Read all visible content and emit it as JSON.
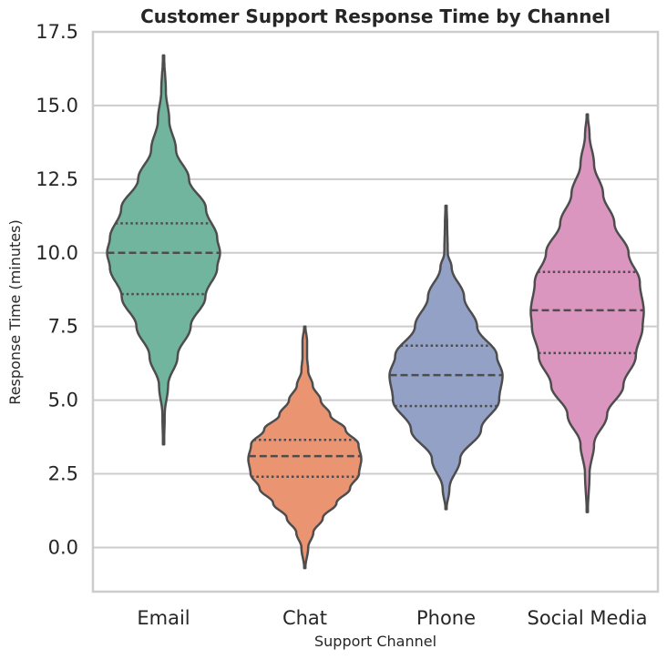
{
  "chart_data": {
    "type": "violin",
    "title": "Customer Support Response Time by Channel",
    "xlabel": "Support Channel",
    "ylabel": "Response Time (minutes)",
    "ylim": [
      -1.5,
      17.5
    ],
    "yticks": [
      0.0,
      2.5,
      5.0,
      7.5,
      10.0,
      12.5,
      15.0,
      17.5
    ],
    "ytick_labels": [
      "0.0",
      "2.5",
      "5.0",
      "7.5",
      "10.0",
      "12.5",
      "15.0",
      "17.5"
    ],
    "grid": "horizontal",
    "categories": [
      "Email",
      "Chat",
      "Phone",
      "Social Media"
    ],
    "series": [
      {
        "category": "Email",
        "color": "#72b59e",
        "min": 3.5,
        "max": 16.7,
        "q1": 8.6,
        "median": 10.0,
        "q3": 11.0,
        "profile": [
          [
            3.5,
            0.01
          ],
          [
            4.5,
            0.02
          ],
          [
            5.5,
            0.08
          ],
          [
            6.5,
            0.25
          ],
          [
            7.5,
            0.48
          ],
          [
            8.5,
            0.74
          ],
          [
            9.5,
            0.95
          ],
          [
            10.0,
            1.0
          ],
          [
            10.5,
            0.95
          ],
          [
            11.5,
            0.75
          ],
          [
            12.5,
            0.45
          ],
          [
            13.5,
            0.22
          ],
          [
            14.5,
            0.1
          ],
          [
            15.5,
            0.04
          ],
          [
            16.7,
            0.01
          ]
        ]
      },
      {
        "category": "Chat",
        "color": "#ea9471",
        "min": -0.7,
        "max": 7.5,
        "q1": 2.4,
        "median": 3.1,
        "q3": 3.65,
        "profile": [
          [
            -0.7,
            0.01
          ],
          [
            0.0,
            0.06
          ],
          [
            0.5,
            0.15
          ],
          [
            1.0,
            0.32
          ],
          [
            1.5,
            0.56
          ],
          [
            2.0,
            0.8
          ],
          [
            2.5,
            0.96
          ],
          [
            3.0,
            1.0
          ],
          [
            3.5,
            0.95
          ],
          [
            4.0,
            0.72
          ],
          [
            4.5,
            0.45
          ],
          [
            5.0,
            0.28
          ],
          [
            5.5,
            0.14
          ],
          [
            6.0,
            0.06
          ],
          [
            6.5,
            0.04
          ],
          [
            7.0,
            0.04
          ],
          [
            7.5,
            0.01
          ]
        ]
      },
      {
        "category": "Phone",
        "color": "#93a1c6",
        "min": 1.3,
        "max": 11.6,
        "q1": 4.8,
        "median": 5.85,
        "q3": 6.85,
        "profile": [
          [
            1.3,
            0.01
          ],
          [
            2.0,
            0.06
          ],
          [
            3.0,
            0.25
          ],
          [
            4.0,
            0.62
          ],
          [
            5.0,
            0.94
          ],
          [
            5.85,
            1.0
          ],
          [
            6.5,
            0.9
          ],
          [
            7.5,
            0.55
          ],
          [
            8.5,
            0.32
          ],
          [
            9.5,
            0.1
          ],
          [
            10.0,
            0.03
          ],
          [
            11.0,
            0.02
          ],
          [
            11.6,
            0.01
          ]
        ]
      },
      {
        "category": "Social Media",
        "color": "#db96c0",
        "min": 1.2,
        "max": 14.7,
        "q1": 6.6,
        "median": 8.05,
        "q3": 9.35,
        "profile": [
          [
            1.2,
            0.01
          ],
          [
            2.5,
            0.04
          ],
          [
            3.5,
            0.12
          ],
          [
            4.5,
            0.35
          ],
          [
            5.5,
            0.64
          ],
          [
            6.5,
            0.86
          ],
          [
            7.5,
            0.98
          ],
          [
            8.0,
            1.0
          ],
          [
            9.0,
            0.93
          ],
          [
            10.0,
            0.73
          ],
          [
            11.0,
            0.48
          ],
          [
            12.0,
            0.28
          ],
          [
            13.0,
            0.12
          ],
          [
            14.0,
            0.04
          ],
          [
            14.7,
            0.01
          ]
        ]
      }
    ]
  }
}
